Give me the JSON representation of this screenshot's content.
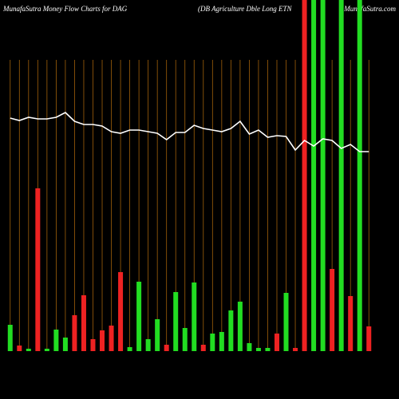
{
  "chart_data": {
    "type": "bar",
    "title": "MunafaSutra  Money Flow  Charts for DAG",
    "subtitle": "(DB Agriculture  Dble  Long ETN",
    "source": "MunafaSutra.com",
    "categories": [
      null,
      null,
      null,
      null,
      null,
      null,
      null,
      null,
      null,
      null,
      null,
      null,
      null,
      null,
      null,
      null,
      null,
      null,
      null,
      null,
      null,
      null,
      null,
      null,
      null,
      null,
      null,
      null,
      null,
      null,
      null,
      null,
      null,
      null,
      null,
      null,
      null,
      null,
      null,
      null
    ],
    "values": [
      33,
      7,
      3,
      204,
      3,
      27,
      17,
      45,
      70,
      15,
      26,
      32,
      99,
      5,
      87,
      15,
      40,
      8,
      74,
      29,
      86,
      8,
      22,
      24,
      51,
      62,
      10,
      4,
      4,
      22,
      73,
      4,
      440,
      440,
      440,
      103,
      440,
      69,
      440,
      31
    ],
    "colors": [
      "#22dd22",
      "#ee2222",
      "#22dd22",
      "#ee2222",
      "#22dd22",
      "#22dd22",
      "#22dd22",
      "#ee2222",
      "#ee2222",
      "#ee2222",
      "#ee2222",
      "#ee2222",
      "#ee2222",
      "#22dd22",
      "#22dd22",
      "#22dd22",
      "#22dd22",
      "#ee2222",
      "#22dd22",
      "#22dd22",
      "#22dd22",
      "#ee2222",
      "#22dd22",
      "#22dd22",
      "#22dd22",
      "#22dd22",
      "#22dd22",
      "#22dd22",
      "#22dd22",
      "#ee2222",
      "#22dd22",
      "#ee2222",
      "#ee2222",
      "#22dd22",
      "#22dd22",
      "#ee2222",
      "#22dd22",
      "#ee2222",
      "#22dd22",
      "#ee2222"
    ],
    "line": {
      "color": "#ffffff",
      "values": [
        292,
        289,
        293,
        291,
        291,
        293,
        299,
        288,
        284,
        284,
        282,
        275,
        273,
        277,
        277,
        275,
        273,
        265,
        274,
        274,
        283,
        279,
        277,
        275,
        279,
        288,
        272,
        277,
        268,
        270,
        269,
        252,
        264,
        257,
        266,
        264,
        254,
        259,
        250,
        250
      ]
    },
    "ylim": [
      0,
      440
    ]
  }
}
